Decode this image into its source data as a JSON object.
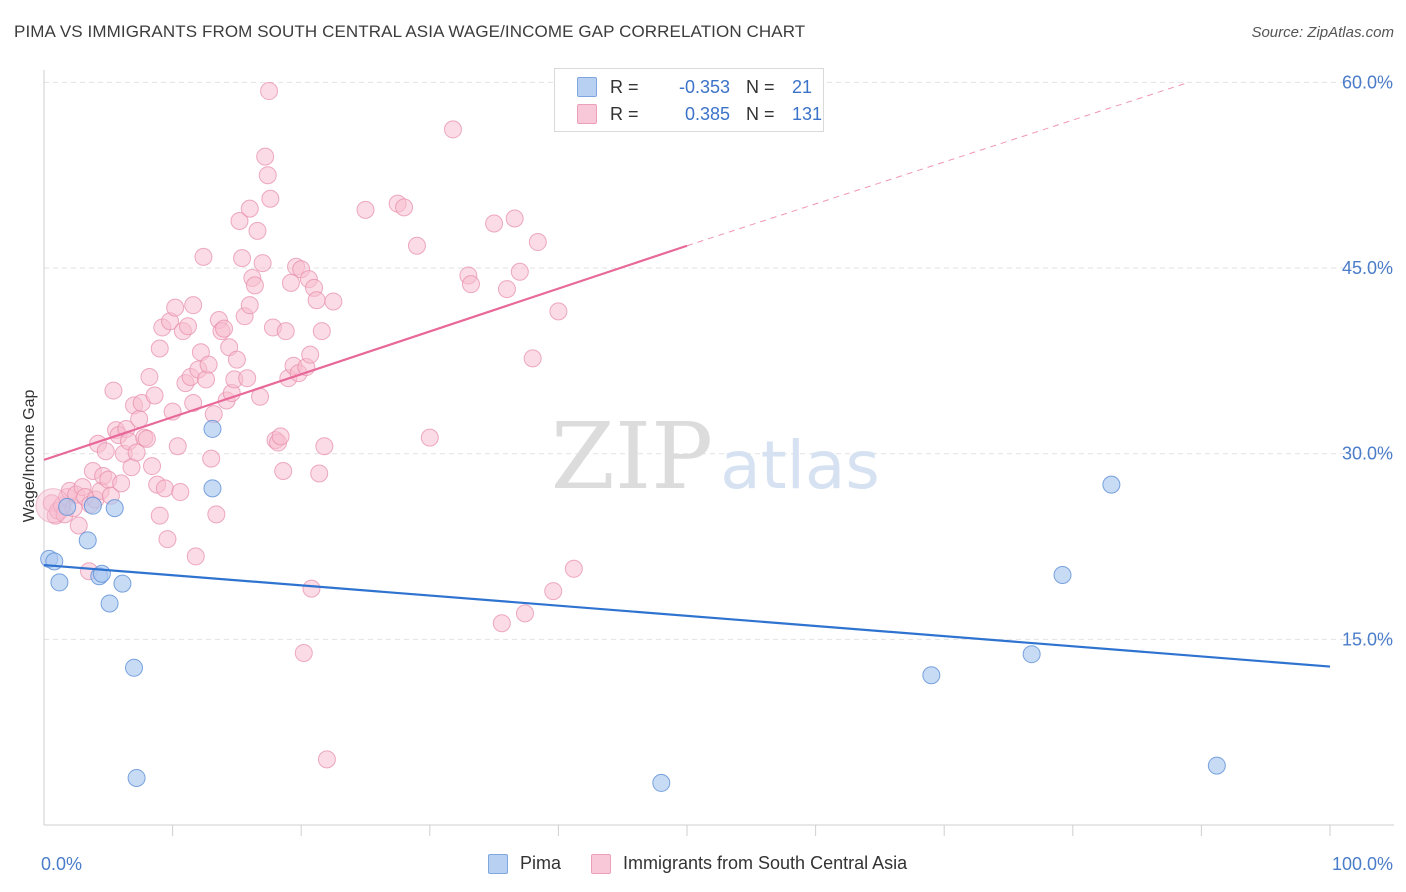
{
  "title": "PIMA VS IMMIGRANTS FROM SOUTH CENTRAL ASIA WAGE/INCOME GAP CORRELATION CHART",
  "source": "Source: ZipAtlas.com",
  "watermark": {
    "zip": "ZIP",
    "atlas": "atlas"
  },
  "colors": {
    "pima_fill": "#aac8f0",
    "pima_stroke": "#5b8fd6",
    "pima_line": "#2f73d0",
    "imm_fill": "#f7bdd0",
    "imm_stroke": "#e68aa8",
    "imm_line": "#e8689a",
    "grid": "#e2e2e2",
    "tick_text": "#4a7cc9"
  },
  "legend": {
    "rows": [
      {
        "r_label": "R =",
        "r_value": "-0.353",
        "n_label": "N =",
        "n_value": "21"
      },
      {
        "r_label": "R =",
        "r_value": "0.385",
        "n_label": "N =",
        "n_value": "131"
      }
    ]
  },
  "bottom_legend": [
    "Pima",
    "Immigrants from South Central Asia"
  ],
  "chart_data": {
    "type": "scatter",
    "xlabel": "",
    "ylabel": "Wage/Income Gap",
    "xlim": [
      0,
      100
    ],
    "ylim": [
      0,
      61
    ],
    "x_tick_labels": [
      {
        "value": 0,
        "label": "0.0%"
      },
      {
        "value": 100,
        "label": "100.0%"
      }
    ],
    "y_tick_labels": [
      {
        "value": 15,
        "label": "15.0%"
      },
      {
        "value": 30,
        "label": "30.0%"
      },
      {
        "value": 45,
        "label": "45.0%"
      },
      {
        "value": 60,
        "label": "60.0%"
      }
    ],
    "grid": true,
    "legend_position": "top-center",
    "series": [
      {
        "name": "Pima",
        "trend": {
          "x": [
            0,
            100
          ],
          "y": [
            21.0,
            12.8
          ]
        },
        "points": [
          [
            0.4,
            21.5
          ],
          [
            0.8,
            21.3
          ],
          [
            1.2,
            19.6
          ],
          [
            1.8,
            25.7
          ],
          [
            3.4,
            23.0
          ],
          [
            3.8,
            25.8
          ],
          [
            4.3,
            20.1
          ],
          [
            4.5,
            20.3
          ],
          [
            5.1,
            17.9
          ],
          [
            5.5,
            25.6
          ],
          [
            6.1,
            19.5
          ],
          [
            7.0,
            12.7
          ],
          [
            7.2,
            3.8
          ],
          [
            13.1,
            27.2
          ],
          [
            13.1,
            32.0
          ],
          [
            48.0,
            3.4
          ],
          [
            69.0,
            12.1
          ],
          [
            76.8,
            13.8
          ],
          [
            79.2,
            20.2
          ],
          [
            83.0,
            27.5
          ],
          [
            91.2,
            4.8
          ]
        ]
      },
      {
        "name": "Immigrants from South Central Asia",
        "trend": {
          "x": [
            0,
            50
          ],
          "y": [
            29.5,
            46.8
          ]
        },
        "trend_extension": {
          "x": [
            50,
            89
          ],
          "y": [
            46.8,
            60.0
          ]
        },
        "points": [
          [
            0.6,
            26.0
          ],
          [
            0.9,
            25.0
          ],
          [
            1.1,
            25.4
          ],
          [
            1.4,
            25.8
          ],
          [
            1.6,
            25.1
          ],
          [
            1.8,
            26.5
          ],
          [
            2.0,
            27.0
          ],
          [
            2.3,
            25.6
          ],
          [
            2.5,
            26.7
          ],
          [
            2.7,
            24.2
          ],
          [
            3.0,
            27.3
          ],
          [
            3.2,
            26.5
          ],
          [
            3.6,
            25.9
          ],
          [
            3.8,
            28.6
          ],
          [
            4.0,
            26.3
          ],
          [
            4.2,
            30.8
          ],
          [
            4.4,
            27.0
          ],
          [
            4.6,
            28.2
          ],
          [
            4.8,
            30.2
          ],
          [
            5.0,
            27.9
          ],
          [
            5.2,
            26.6
          ],
          [
            5.4,
            35.1
          ],
          [
            5.6,
            31.9
          ],
          [
            5.8,
            31.5
          ],
          [
            6.0,
            27.6
          ],
          [
            6.2,
            30.0
          ],
          [
            6.4,
            32.0
          ],
          [
            6.6,
            31.0
          ],
          [
            6.8,
            28.9
          ],
          [
            7.0,
            33.9
          ],
          [
            7.2,
            30.1
          ],
          [
            7.4,
            32.8
          ],
          [
            7.6,
            34.1
          ],
          [
            7.8,
            31.3
          ],
          [
            8.0,
            31.2
          ],
          [
            8.2,
            36.2
          ],
          [
            8.4,
            29.0
          ],
          [
            8.6,
            34.7
          ],
          [
            8.8,
            27.5
          ],
          [
            9.0,
            38.5
          ],
          [
            9.2,
            40.2
          ],
          [
            9.4,
            27.2
          ],
          [
            9.6,
            23.1
          ],
          [
            9.8,
            40.7
          ],
          [
            10.0,
            33.4
          ],
          [
            10.2,
            41.8
          ],
          [
            10.4,
            30.6
          ],
          [
            10.6,
            26.9
          ],
          [
            10.8,
            39.9
          ],
          [
            11.0,
            35.7
          ],
          [
            11.2,
            40.3
          ],
          [
            11.4,
            36.2
          ],
          [
            11.6,
            34.1
          ],
          [
            11.8,
            21.7
          ],
          [
            12.0,
            36.8
          ],
          [
            12.2,
            38.2
          ],
          [
            12.4,
            45.9
          ],
          [
            12.6,
            36.0
          ],
          [
            12.8,
            37.2
          ],
          [
            13.0,
            29.6
          ],
          [
            13.2,
            33.2
          ],
          [
            13.4,
            25.1
          ],
          [
            13.6,
            40.8
          ],
          [
            13.8,
            39.9
          ],
          [
            14.0,
            40.1
          ],
          [
            14.2,
            34.3
          ],
          [
            14.4,
            38.6
          ],
          [
            14.6,
            34.9
          ],
          [
            14.8,
            36.0
          ],
          [
            15.0,
            37.6
          ],
          [
            15.2,
            48.8
          ],
          [
            15.4,
            45.8
          ],
          [
            15.6,
            41.1
          ],
          [
            15.8,
            36.1
          ],
          [
            16.0,
            49.8
          ],
          [
            16.2,
            44.2
          ],
          [
            16.4,
            43.6
          ],
          [
            16.6,
            48.0
          ],
          [
            16.8,
            34.6
          ],
          [
            17.0,
            45.4
          ],
          [
            17.2,
            54.0
          ],
          [
            17.4,
            52.5
          ],
          [
            17.6,
            50.6
          ],
          [
            17.8,
            40.2
          ],
          [
            18.0,
            31.1
          ],
          [
            18.2,
            30.9
          ],
          [
            18.4,
            31.4
          ],
          [
            18.6,
            28.6
          ],
          [
            18.8,
            39.9
          ],
          [
            19.0,
            36.1
          ],
          [
            19.2,
            43.8
          ],
          [
            19.4,
            37.1
          ],
          [
            19.6,
            45.1
          ],
          [
            19.8,
            36.5
          ],
          [
            20.0,
            44.9
          ],
          [
            20.2,
            13.9
          ],
          [
            20.4,
            37.0
          ],
          [
            20.6,
            44.1
          ],
          [
            20.8,
            19.1
          ],
          [
            21.0,
            43.4
          ],
          [
            21.2,
            42.4
          ],
          [
            21.4,
            28.4
          ],
          [
            21.6,
            39.9
          ],
          [
            21.8,
            30.6
          ],
          [
            22.0,
            5.3
          ],
          [
            17.5,
            59.3
          ],
          [
            25.0,
            49.7
          ],
          [
            27.5,
            50.2
          ],
          [
            28.0,
            49.9
          ],
          [
            29.0,
            46.8
          ],
          [
            30.0,
            31.3
          ],
          [
            31.8,
            56.2
          ],
          [
            33.0,
            44.4
          ],
          [
            33.2,
            43.7
          ],
          [
            35.0,
            48.6
          ],
          [
            35.6,
            16.3
          ],
          [
            36.0,
            43.3
          ],
          [
            36.6,
            49.0
          ],
          [
            37.0,
            44.7
          ],
          [
            37.4,
            17.1
          ],
          [
            38.0,
            37.7
          ],
          [
            38.4,
            47.1
          ],
          [
            39.6,
            18.9
          ],
          [
            40.0,
            41.5
          ],
          [
            41.2,
            20.7
          ],
          [
            16.0,
            42.0
          ],
          [
            20.7,
            38.0
          ],
          [
            11.6,
            42.0
          ],
          [
            9.0,
            25.0
          ],
          [
            22.5,
            42.3
          ],
          [
            3.5,
            20.5
          ]
        ]
      }
    ]
  }
}
